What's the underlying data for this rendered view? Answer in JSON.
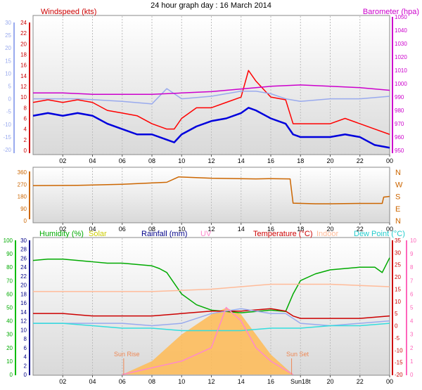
{
  "page_title": "24 hour graph day : 16 March 2014",
  "colors": {
    "gust": "#ff0000",
    "wind": "#0000dd",
    "temp_blue": "#99aaee",
    "baro": "#cc00cc",
    "dir": "#cc6600",
    "humidity": "#00aa00",
    "solar": "#ffbb55",
    "uv": "#ff88cc",
    "temperature": "#cc0000",
    "indoor": "#ffbb99",
    "dewpoint": "#33dddd",
    "rain": "#000088"
  },
  "chart_data": [
    {
      "type": "line",
      "labels": {
        "left": "Windspeed (kts)",
        "right": "Barometer (hpa)"
      },
      "x_ticks": [
        "02",
        "04",
        "06",
        "08",
        "10",
        "12",
        "14",
        "16",
        "18",
        "20",
        "22",
        "00"
      ],
      "axes": {
        "temp_left": {
          "ticks": [
            "30",
            "25",
            "20",
            "15",
            "10",
            "5",
            "0",
            "-5",
            "-10",
            "-15",
            "-20"
          ]
        },
        "wind_left": {
          "ticks": [
            "24",
            "22",
            "20",
            "18",
            "16",
            "14",
            "12",
            "10",
            "8",
            "6",
            "4",
            "2",
            "0"
          ]
        },
        "baro_right": {
          "ticks": [
            "1050",
            "1040",
            "1030",
            "1020",
            "1010",
            "1000",
            "990",
            "980",
            "970",
            "960",
            "950"
          ]
        }
      },
      "series": [
        {
          "key": "gust",
          "unit": "kts",
          "x": [
            0,
            1,
            2,
            3,
            4,
            5,
            6,
            7,
            8,
            9,
            9.5,
            10,
            11,
            12,
            13,
            14,
            14.5,
            15,
            16,
            17,
            17.5,
            18,
            19,
            20,
            21,
            22,
            23,
            24
          ],
          "y": [
            9,
            9.5,
            9,
            9.5,
            9,
            7.5,
            7,
            6.5,
            5,
            4,
            4,
            6,
            8,
            8,
            9,
            10,
            15,
            13,
            10,
            9.5,
            5,
            5,
            5,
            5,
            6,
            5,
            4,
            3
          ]
        },
        {
          "key": "wind",
          "unit": "kts",
          "x": [
            0,
            1,
            2,
            3,
            4,
            5,
            6,
            7,
            8,
            9,
            9.5,
            10,
            11,
            12,
            13,
            14,
            14.5,
            15,
            16,
            17,
            17.5,
            18,
            19,
            20,
            21,
            22,
            23,
            24
          ],
          "y": [
            6.5,
            7,
            6.5,
            7,
            6.5,
            5,
            4,
            3,
            3,
            2,
            1.5,
            3,
            4.5,
            5.5,
            6,
            7,
            8,
            7.5,
            6,
            5,
            3,
            2.5,
            2.5,
            2.5,
            3,
            2.5,
            1,
            0.5
          ]
        },
        {
          "key": "temp_blue",
          "unit": "°C",
          "x": [
            0,
            3,
            6,
            8,
            9,
            10,
            12,
            14,
            15,
            16,
            17,
            18,
            20,
            22,
            24
          ],
          "y": [
            0,
            0,
            -1,
            -2,
            4,
            0,
            1,
            3,
            3,
            2,
            0,
            -1,
            0,
            0,
            1
          ]
        },
        {
          "key": "baro",
          "unit": "hpa",
          "x": [
            0,
            2,
            4,
            6,
            8,
            10,
            12,
            14,
            15,
            16,
            18,
            20,
            22,
            24
          ],
          "y": [
            993,
            993,
            992,
            992,
            992,
            993,
            994,
            996,
            997,
            998,
            999,
            998,
            997,
            995
          ]
        }
      ]
    },
    {
      "type": "line",
      "x_ticks": [
        "02",
        "04",
        "06",
        "08",
        "10",
        "12",
        "14",
        "16",
        "18",
        "20",
        "22",
        "00"
      ],
      "left_ticks": [
        "360",
        "270",
        "180",
        "90",
        "0"
      ],
      "right_labels": [
        "N",
        "W",
        "S",
        "E",
        "N"
      ],
      "series": [
        {
          "key": "dir",
          "unit": "deg",
          "x": [
            0,
            3,
            6,
            9,
            9.8,
            12,
            15,
            16,
            17.3,
            17.5,
            19,
            20,
            22,
            23.5,
            23.6,
            24
          ],
          "y": [
            260,
            262,
            270,
            285,
            325,
            315,
            310,
            312,
            310,
            130,
            125,
            125,
            128,
            128,
            175,
            180
          ]
        }
      ]
    },
    {
      "type": "line",
      "legend": {
        "humidity": "Humidity (%)",
        "solar": "Solar",
        "rain": "Rainfall (mm)",
        "uv": "UV",
        "temperature": "Temperature (°C)",
        "indoor": "Indoor",
        "dewpoint": "Dew Point (°C)"
      },
      "annotations": {
        "sunrise": "Sun Rise",
        "sunset": "Sun Set"
      },
      "x_ticks": [
        "02",
        "04",
        "06",
        "08",
        "10",
        "12",
        "14",
        "16",
        "18",
        "20",
        "22",
        "00"
      ],
      "sunset_tick_label": "Sun18t",
      "axes": {
        "humidity": {
          "ticks": [
            "100",
            "90",
            "80",
            "70",
            "60",
            "50",
            "40",
            "30",
            "20",
            "10",
            "0"
          ]
        },
        "rain": {
          "ticks": [
            "30",
            "28",
            "26",
            "24",
            "22",
            "20",
            "18",
            "16",
            "14",
            "12",
            "10",
            "8",
            "6",
            "4",
            "2",
            "0"
          ]
        },
        "temperature": {
          "ticks": [
            "35",
            "30",
            "25",
            "20",
            "15",
            "10",
            "5",
            "0",
            "-5",
            "-10",
            "-15",
            "-20"
          ]
        },
        "uv": {
          "ticks": [
            "10",
            "9",
            "8",
            "7",
            "6",
            "5",
            "4",
            "3",
            "2",
            "1",
            "0"
          ]
        }
      },
      "series": [
        {
          "key": "humidity",
          "unit": "%",
          "x": [
            0,
            1,
            2,
            3,
            4,
            5,
            6,
            7,
            8,
            8.5,
            9,
            10,
            11,
            12,
            13,
            14,
            15,
            16,
            17,
            17.5,
            18,
            19,
            20,
            21,
            22,
            23,
            23.5,
            24
          ],
          "y": [
            85,
            86,
            86,
            85,
            84,
            83,
            83,
            82,
            81,
            79,
            76,
            60,
            52,
            48,
            47,
            46,
            47,
            48,
            47,
            60,
            70,
            75,
            78,
            79,
            80,
            80,
            76,
            87
          ]
        },
        {
          "key": "temperature",
          "unit": "°C",
          "x": [
            0,
            2,
            4,
            6,
            8,
            10,
            12,
            14,
            16,
            17,
            17.5,
            18,
            20,
            22,
            24
          ],
          "y": [
            5,
            5,
            4,
            4,
            4,
            5,
            6,
            6,
            7,
            6,
            4,
            3,
            3,
            3,
            4
          ]
        },
        {
          "key": "indoor",
          "unit": "°C",
          "x": [
            0,
            4,
            8,
            12,
            16,
            20,
            24
          ],
          "y": [
            14,
            14,
            14,
            15,
            17,
            17,
            16
          ]
        },
        {
          "key": "temp_blue",
          "unit": "°C",
          "x": [
            0,
            2,
            4,
            6,
            8,
            10,
            12,
            14,
            16,
            17,
            18,
            20,
            22,
            24
          ],
          "y": [
            1,
            1,
            1,
            1,
            0,
            1,
            5,
            7,
            5,
            5,
            1,
            0,
            1,
            2
          ]
        },
        {
          "key": "dewpoint",
          "unit": "°C",
          "x": [
            0,
            2,
            4,
            6,
            8,
            10,
            12,
            14,
            16,
            18,
            20,
            22,
            24
          ],
          "y": [
            1,
            1,
            0,
            -1,
            -1,
            -2,
            -2,
            -2,
            -1,
            -1,
            0,
            0,
            1
          ]
        },
        {
          "key": "solar",
          "unit": "rel",
          "x": [
            6,
            8,
            10,
            12,
            13,
            14,
            15,
            16,
            17.5
          ],
          "y": [
            0,
            2,
            6,
            9,
            10,
            9,
            6,
            3,
            0
          ]
        },
        {
          "key": "uv",
          "unit": "index",
          "x": [
            6,
            8,
            10,
            12,
            13,
            14,
            15,
            16,
            17.5
          ],
          "y": [
            0,
            0.5,
            1,
            2,
            5,
            4,
            2,
            1,
            0
          ]
        }
      ]
    }
  ]
}
